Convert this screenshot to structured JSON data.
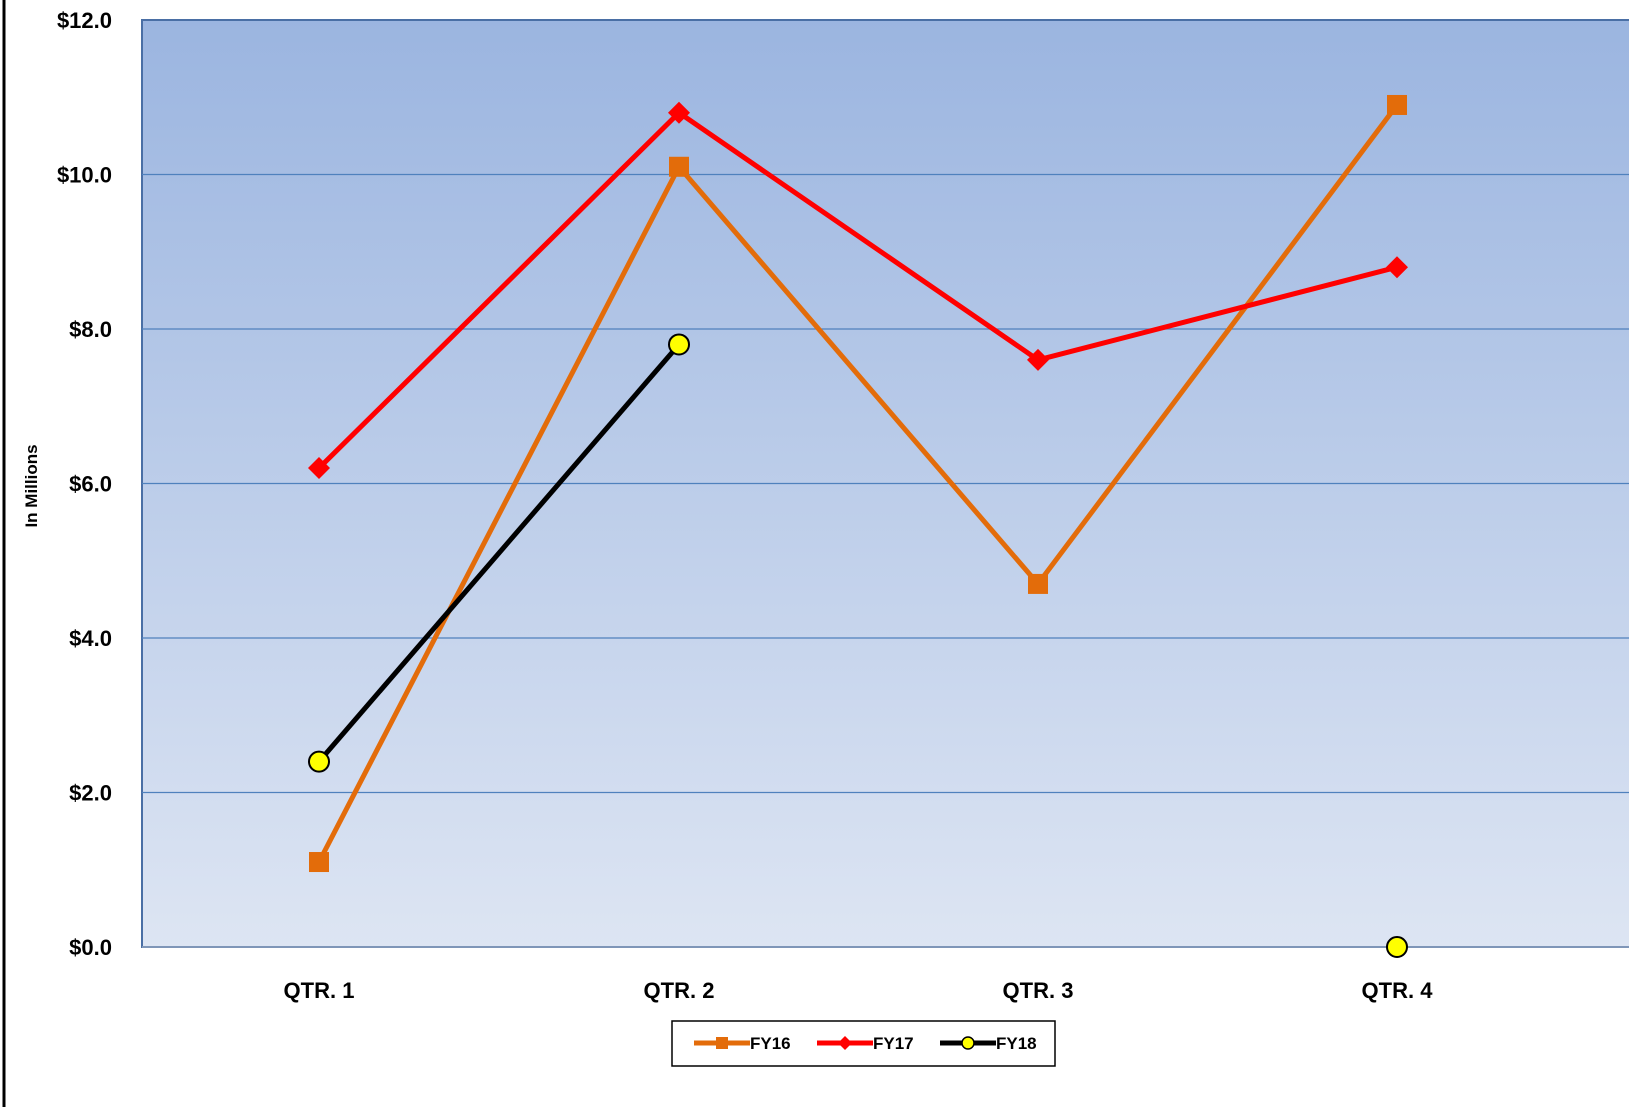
{
  "chart_data": {
    "type": "line",
    "title": "",
    "xlabel": "",
    "ylabel": "In Millions",
    "categories": [
      "QTR. 1",
      "QTR. 2",
      "QTR. 3",
      "QTR. 4"
    ],
    "ylim": [
      0,
      12
    ],
    "yticks": [
      0,
      2,
      4,
      6,
      8,
      10,
      12
    ],
    "ytick_labels": [
      "$0.0",
      "$2.0",
      "$4.0",
      "$6.0",
      "$8.0",
      "$10.0",
      "$12.0"
    ],
    "grid": true,
    "legend_position": "bottom-center",
    "series": [
      {
        "name": "FY16",
        "values": [
          1.1,
          10.1,
          4.7,
          10.9
        ],
        "color": "#E36C0A",
        "marker": "square"
      },
      {
        "name": "FY17",
        "values": [
          6.2,
          10.8,
          7.6,
          8.8
        ],
        "color": "#FF0000",
        "marker": "diamond"
      },
      {
        "name": "FY18",
        "values": [
          2.4,
          7.8,
          null,
          0.0
        ],
        "color": "#000000",
        "marker": "circle",
        "marker_fill": "#FFFF00"
      }
    ],
    "colors": {
      "plot_bg_top": "#9BB5E0",
      "plot_bg_bottom": "#DDE5F3",
      "gridline": "#4F81BD",
      "plot_border": "#4A6FA5"
    }
  }
}
